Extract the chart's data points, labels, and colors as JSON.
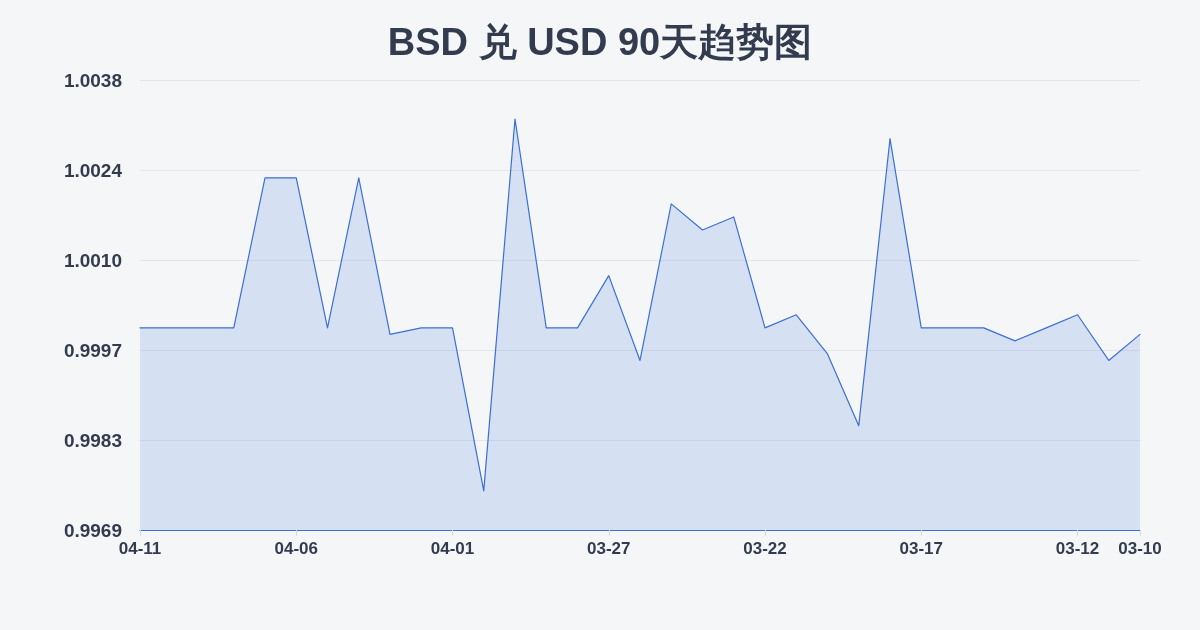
{
  "chart_data": {
    "type": "area",
    "title": "BSD 兑 USD 90天趋势图",
    "categories": [
      "04-11",
      null,
      null,
      null,
      null,
      "04-06",
      null,
      null,
      null,
      null,
      "04-01",
      null,
      null,
      null,
      null,
      "03-27",
      null,
      null,
      null,
      null,
      "03-22",
      null,
      null,
      null,
      null,
      "03-17",
      null,
      null,
      null,
      null,
      "03-12",
      null,
      "03-10"
    ],
    "color": "#3b6fd8",
    "values": [
      1.0,
      1.0,
      1.0,
      1.0,
      1.0023,
      1.0023,
      1.0,
      1.0023,
      0.9999,
      1.0,
      1.0,
      0.9975,
      1.0032,
      1.0,
      1.0,
      1.0008,
      0.9995,
      1.0019,
      1.0015,
      1.0017,
      1.0,
      1.0002,
      0.9996,
      0.9985,
      1.0029,
      1.0,
      1.0,
      1.0,
      0.9998,
      1.0,
      1.0002,
      0.9995,
      0.9999
    ],
    "ylim": [
      0.9969,
      1.0038
    ],
    "yticks": [
      0.9969,
      {
        "value": 0.99828,
        "label": "0.9983"
      },
      {
        "value": 0.99966,
        "label": "0.9997"
      },
      {
        "value": 1.00104,
        "label": "1.0010"
      },
      {
        "value": 1.00242,
        "label": "1.0024"
      },
      1.0038
    ],
    "grid": "y",
    "marker": "none",
    "line_style": "solid"
  }
}
